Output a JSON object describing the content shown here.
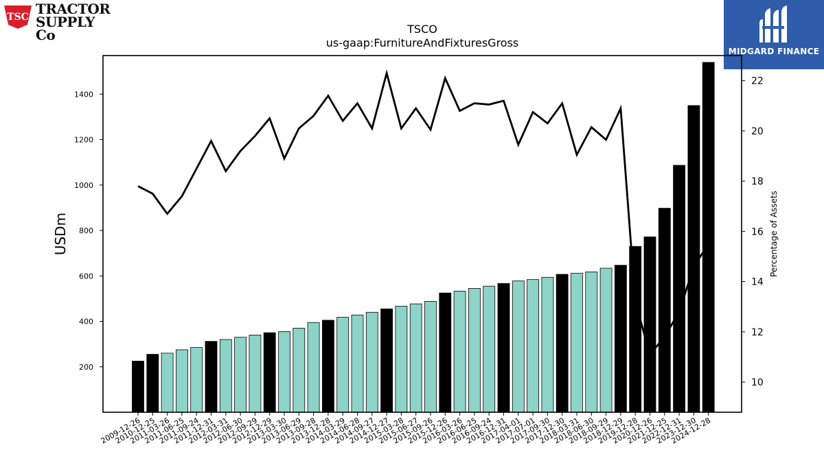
{
  "logos": {
    "left": {
      "badge_text": "TSC",
      "line1": "TRACTOR",
      "line2": "SUPPLY Co"
    },
    "right": {
      "name": "MIDGARD FINANCE"
    }
  },
  "colors": {
    "bar_black": "#000000",
    "bar_teal": "#8dd3c7",
    "line": "#000000",
    "tsc_red": "#d81e2c",
    "midgard_blue": "#2f5cab"
  },
  "chart_data": {
    "type": "bar",
    "title": "TSCO",
    "subtitle": "us-gaap:FurnitureAndFixturesGross",
    "ylabel": "USDm",
    "y2label": "Percentage of Assets",
    "ylim": [
      0,
      1570
    ],
    "y2lim": [
      8.8,
      23.0
    ],
    "yticks": [
      200,
      400,
      600,
      800,
      1000,
      1200,
      1400
    ],
    "y2ticks": [
      10,
      12,
      14,
      16,
      18,
      20,
      22
    ],
    "grid": false,
    "categories": [
      "2009-12-26",
      "2010-12-25",
      "2011-03-26",
      "2011-06-25",
      "2011-09-24",
      "2011-12-31",
      "2012-03-31",
      "2012-06-30",
      "2012-09-29",
      "2012-12-29",
      "2013-03-30",
      "2013-06-29",
      "2013-09-28",
      "2013-12-28",
      "2014-03-29",
      "2014-06-28",
      "2014-09-27",
      "2014-12-27",
      "2015-03-28",
      "2015-06-27",
      "2015-09-26",
      "2015-12-26",
      "2016-03-26",
      "2016-06-25",
      "2016-09-24",
      "2016-12-31",
      "2017-04-01",
      "2017-07-01",
      "2017-09-30",
      "2017-12-30",
      "2018-03-31",
      "2018-06-30",
      "2018-09-29",
      "2018-12-29",
      "2019-12-28",
      "2020-12-26",
      "2021-12-25",
      "2022-12-31",
      "2023-12-30",
      "2024-12-28"
    ],
    "series": [
      {
        "kind": "bar",
        "axis": "left",
        "values": [
          225,
          255,
          260,
          275,
          285,
          312,
          320,
          330,
          340,
          350,
          355,
          370,
          395,
          405,
          418,
          428,
          440,
          455,
          467,
          477,
          488,
          525,
          533,
          545,
          555,
          567,
          578,
          584,
          594,
          607,
          612,
          618,
          634,
          647,
          730,
          772,
          898,
          1087,
          1350,
          1540
        ],
        "fill": [
          "black",
          "black",
          "teal",
          "teal",
          "teal",
          "black",
          "teal",
          "teal",
          "teal",
          "black",
          "teal",
          "teal",
          "teal",
          "black",
          "teal",
          "teal",
          "teal",
          "black",
          "teal",
          "teal",
          "teal",
          "black",
          "teal",
          "teal",
          "teal",
          "black",
          "teal",
          "teal",
          "teal",
          "black",
          "teal",
          "teal",
          "teal",
          "black",
          "black",
          "black",
          "black",
          "black",
          "black",
          "black"
        ]
      },
      {
        "kind": "line",
        "axis": "right",
        "values": [
          17.8,
          17.5,
          16.7,
          17.4,
          18.5,
          19.6,
          18.4,
          19.2,
          19.8,
          20.5,
          18.9,
          20.1,
          20.6,
          21.4,
          20.4,
          21.1,
          20.1,
          22.3,
          20.1,
          20.9,
          20.05,
          22.1,
          20.8,
          21.1,
          21.05,
          21.2,
          19.45,
          20.75,
          20.3,
          21.1,
          19.05,
          20.15,
          19.65,
          20.9,
          13.2,
          11.1,
          11.8,
          12.8,
          14.6,
          15.5
        ]
      }
    ]
  }
}
